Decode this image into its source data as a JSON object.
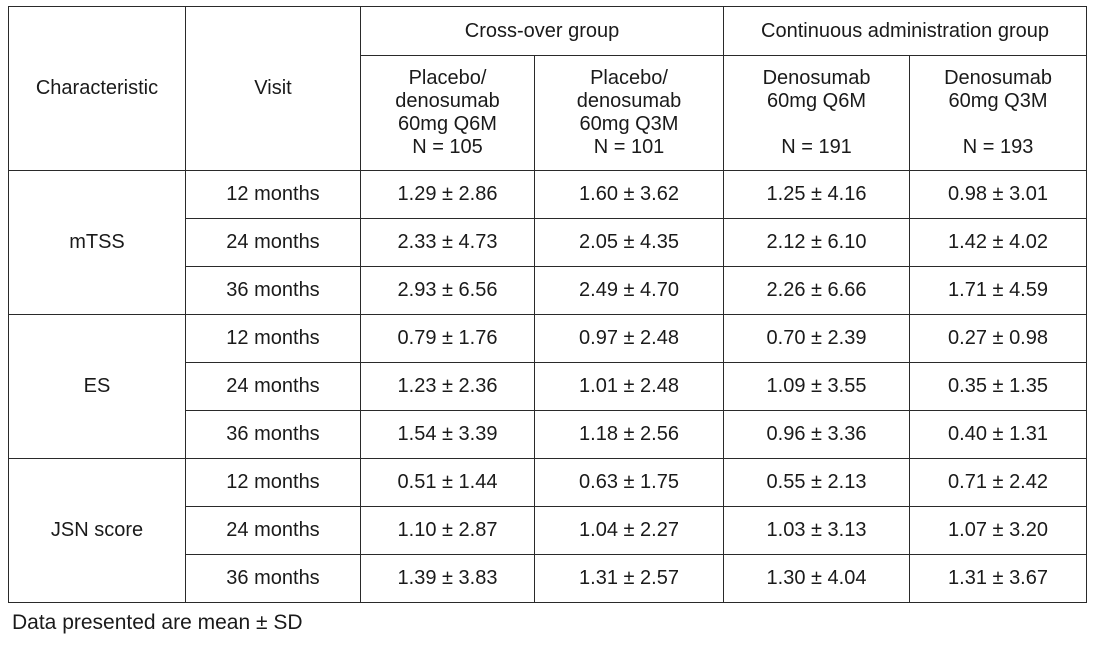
{
  "table": {
    "header": {
      "characteristic": "Characteristic",
      "visit": "Visit",
      "groups": [
        "Cross-over group",
        "Continuous administration group"
      ],
      "columns": [
        {
          "line1": "Placebo/",
          "line2": "denosumab",
          "line3": "60mg Q6M",
          "n": "N = 105"
        },
        {
          "line1": "Placebo/",
          "line2": "denosumab",
          "line3": "60mg Q3M",
          "n": "N = 101"
        },
        {
          "line1": "Denosumab",
          "line2": "60mg Q6M",
          "line3": "",
          "n": "N = 191"
        },
        {
          "line1": "Denosumab",
          "line2": "60mg Q3M",
          "line3": "",
          "n": "N = 193"
        }
      ]
    },
    "sections": [
      {
        "label": "mTSS",
        "rows": [
          {
            "visit": "12 months",
            "values": [
              "1.29 ± 2.86",
              "1.60 ± 3.62",
              "1.25 ± 4.16",
              "0.98 ± 3.01"
            ]
          },
          {
            "visit": "24 months",
            "values": [
              "2.33 ± 4.73",
              "2.05 ± 4.35",
              "2.12 ± 6.10",
              "1.42 ± 4.02"
            ]
          },
          {
            "visit": "36 months",
            "values": [
              "2.93 ± 6.56",
              "2.49 ± 4.70",
              "2.26 ± 6.66",
              "1.71 ± 4.59"
            ]
          }
        ]
      },
      {
        "label": "ES",
        "rows": [
          {
            "visit": "12 months",
            "values": [
              "0.79 ± 1.76",
              "0.97 ± 2.48",
              "0.70 ± 2.39",
              "0.27 ± 0.98"
            ]
          },
          {
            "visit": "24 months",
            "values": [
              "1.23 ± 2.36",
              "1.01 ± 2.48",
              "1.09 ± 3.55",
              "0.35 ± 1.35"
            ]
          },
          {
            "visit": "36 months",
            "values": [
              "1.54 ± 3.39",
              "1.18 ± 2.56",
              "0.96 ± 3.36",
              "0.40 ± 1.31"
            ]
          }
        ]
      },
      {
        "label": "JSN score",
        "rows": [
          {
            "visit": "12 months",
            "values": [
              "0.51 ± 1.44",
              "0.63 ± 1.75",
              "0.55 ± 2.13",
              "0.71 ± 2.42"
            ]
          },
          {
            "visit": "24 months",
            "values": [
              "1.10 ± 2.87",
              "1.04 ± 2.27",
              "1.03 ± 3.13",
              "1.07 ± 3.20"
            ]
          },
          {
            "visit": "36 months",
            "values": [
              "1.39 ± 3.83",
              "1.31 ± 2.57",
              "1.30 ± 4.04",
              "1.31 ± 3.67"
            ]
          }
        ]
      }
    ]
  },
  "footnote": "Data presented are mean ± SD"
}
